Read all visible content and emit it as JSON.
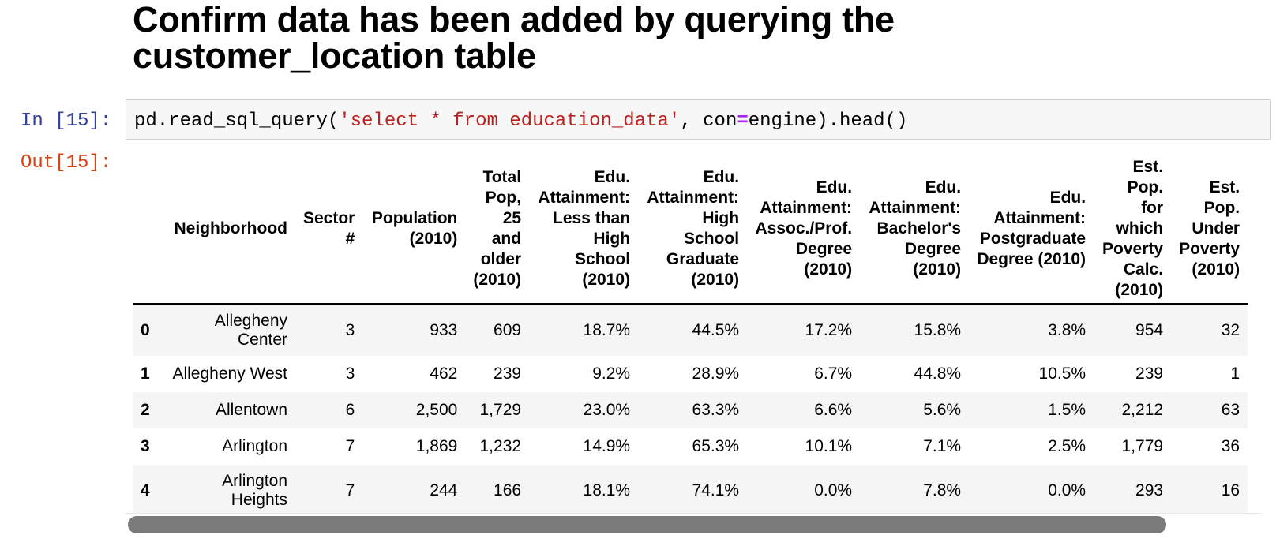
{
  "heading": {
    "line1": "Confirm data has been added by querying the",
    "line2": "customer_location table"
  },
  "input_cell": {
    "prompt": "In [15]:",
    "code": {
      "fn": "pd.read_sql_query(",
      "query": "'select * from education_data'",
      "sep": ", con",
      "op": "=",
      "rest": "engine).head()"
    }
  },
  "output_cell": {
    "prompt": "Out[15]:",
    "columns": [
      "",
      "Neighborhood",
      "Sector #",
      "Population (2010)",
      "Total Pop, 25 and older (2010)",
      "Edu. Attainment: Less than High School (2010)",
      "Edu. Attainment: High School Graduate (2010)",
      "Edu. Attainment: Assoc./Prof. Degree (2010)",
      "Edu. Attainment: Bachelor's Degree (2010)",
      "Edu. Attainment: Postgraduate Degree (2010)",
      "Est. Pop. for which Poverty Calc. (2010)",
      "Est. Pop. Under Poverty (2010)"
    ],
    "rows": [
      {
        "index": "0",
        "cells": [
          "Allegheny Center",
          "3",
          "933",
          "609",
          "18.7%",
          "44.5%",
          "17.2%",
          "15.8%",
          "3.8%",
          "954",
          "32"
        ]
      },
      {
        "index": "1",
        "cells": [
          "Allegheny West",
          "3",
          "462",
          "239",
          "9.2%",
          "28.9%",
          "6.7%",
          "44.8%",
          "10.5%",
          "239",
          "1"
        ]
      },
      {
        "index": "2",
        "cells": [
          "Allentown",
          "6",
          "2,500",
          "1,729",
          "23.0%",
          "63.3%",
          "6.6%",
          "5.6%",
          "1.5%",
          "2,212",
          "63"
        ]
      },
      {
        "index": "3",
        "cells": [
          "Arlington",
          "7",
          "1,869",
          "1,232",
          "14.9%",
          "65.3%",
          "10.1%",
          "7.1%",
          "2.5%",
          "1,779",
          "36"
        ]
      },
      {
        "index": "4",
        "cells": [
          "Arlington Heights",
          "7",
          "244",
          "166",
          "18.1%",
          "74.1%",
          "0.0%",
          "7.8%",
          "0.0%",
          "293",
          "16"
        ]
      }
    ]
  }
}
